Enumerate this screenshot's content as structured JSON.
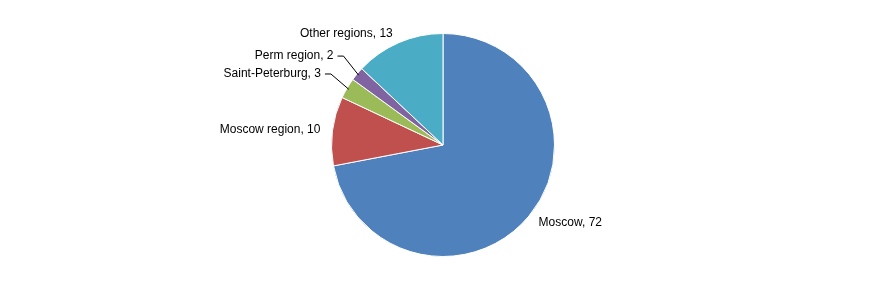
{
  "chart_data": {
    "type": "pie",
    "categories": [
      "Moscow",
      "Moscow region",
      "Saint-Peterburg",
      "Perm region",
      "Other regions"
    ],
    "values": [
      72,
      10,
      3,
      2,
      13
    ],
    "value_labels": [
      "Moscow, 72",
      "Moscow region, 10",
      "Saint-Peterburg, 3",
      "Perm region, 2",
      "Other regions, 13"
    ],
    "colors": [
      "#4f81bd",
      "#c0504d",
      "#9bbb59",
      "#8064a2",
      "#4bacc6"
    ],
    "data_labels": true
  }
}
